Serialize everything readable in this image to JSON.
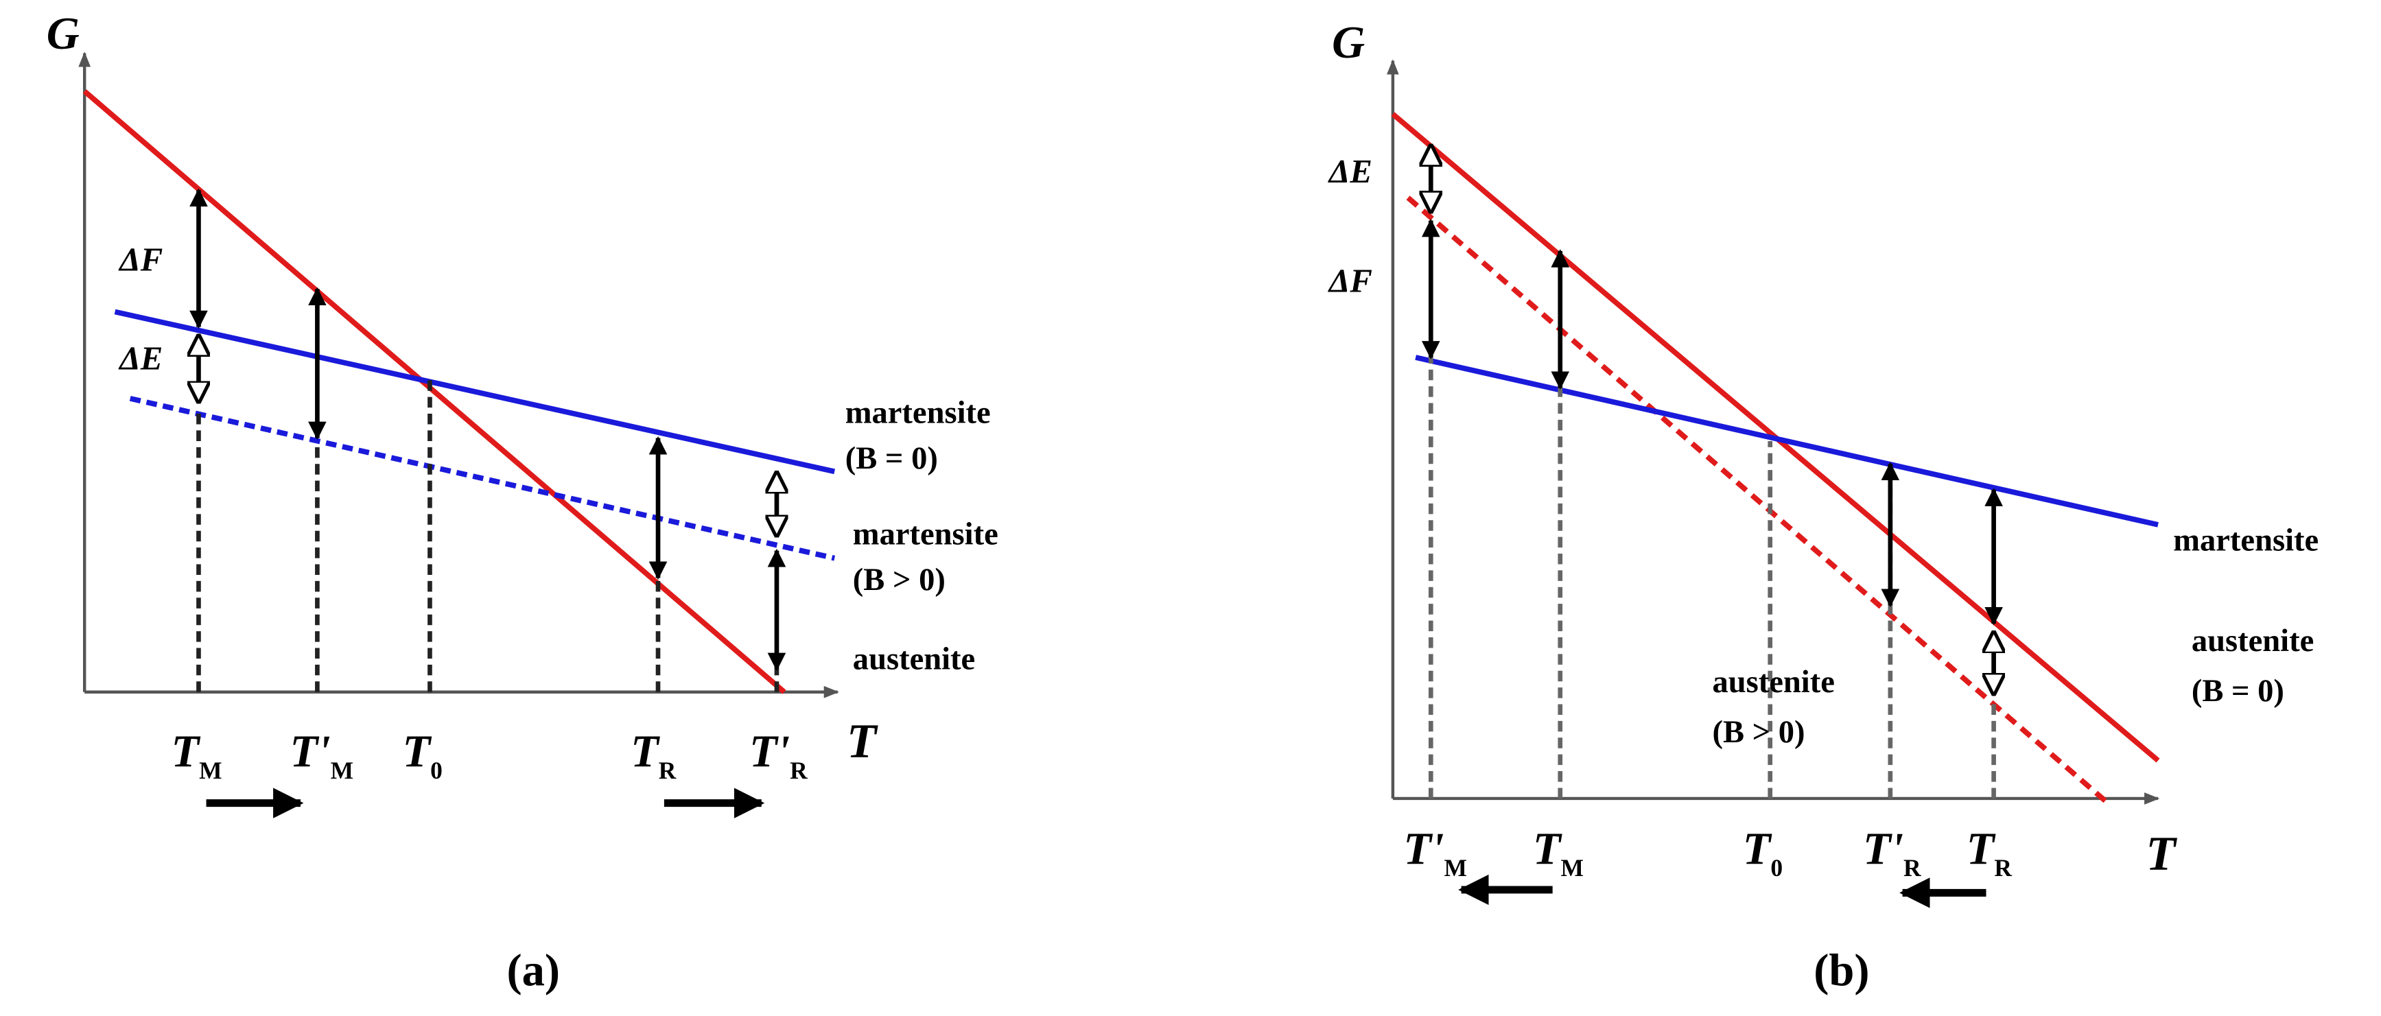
{
  "panels": [
    {
      "label": "(a)",
      "y_axis": "G",
      "x_axis": "T",
      "delta_f": "ΔF",
      "delta_e": "ΔE",
      "temperatures": [
        {
          "main": "T",
          "sub": "M"
        },
        {
          "main": "T'",
          "sub": "M"
        },
        {
          "main": "T",
          "sub": "0"
        },
        {
          "main": "T",
          "sub": "R"
        },
        {
          "main": "T'",
          "sub": "R"
        }
      ],
      "curves": [
        {
          "name": "martensite",
          "condition": "(B = 0)"
        },
        {
          "name": "martensite",
          "condition": "(B > 0)"
        },
        {
          "name": "austenite"
        }
      ]
    },
    {
      "label": "(b)",
      "y_axis": "G",
      "x_axis": "T",
      "delta_f": "ΔF",
      "delta_e": "ΔE",
      "temperatures": [
        {
          "main": "T'",
          "sub": "M"
        },
        {
          "main": "T",
          "sub": "M"
        },
        {
          "main": "T",
          "sub": "0"
        },
        {
          "main": "T'",
          "sub": "R"
        },
        {
          "main": "T",
          "sub": "R"
        }
      ],
      "curves": [
        {
          "name": "martensite"
        },
        {
          "name": "austenite",
          "condition": "(B = 0)"
        },
        {
          "name": "austenite",
          "condition": "(B > 0)"
        }
      ]
    }
  ]
}
